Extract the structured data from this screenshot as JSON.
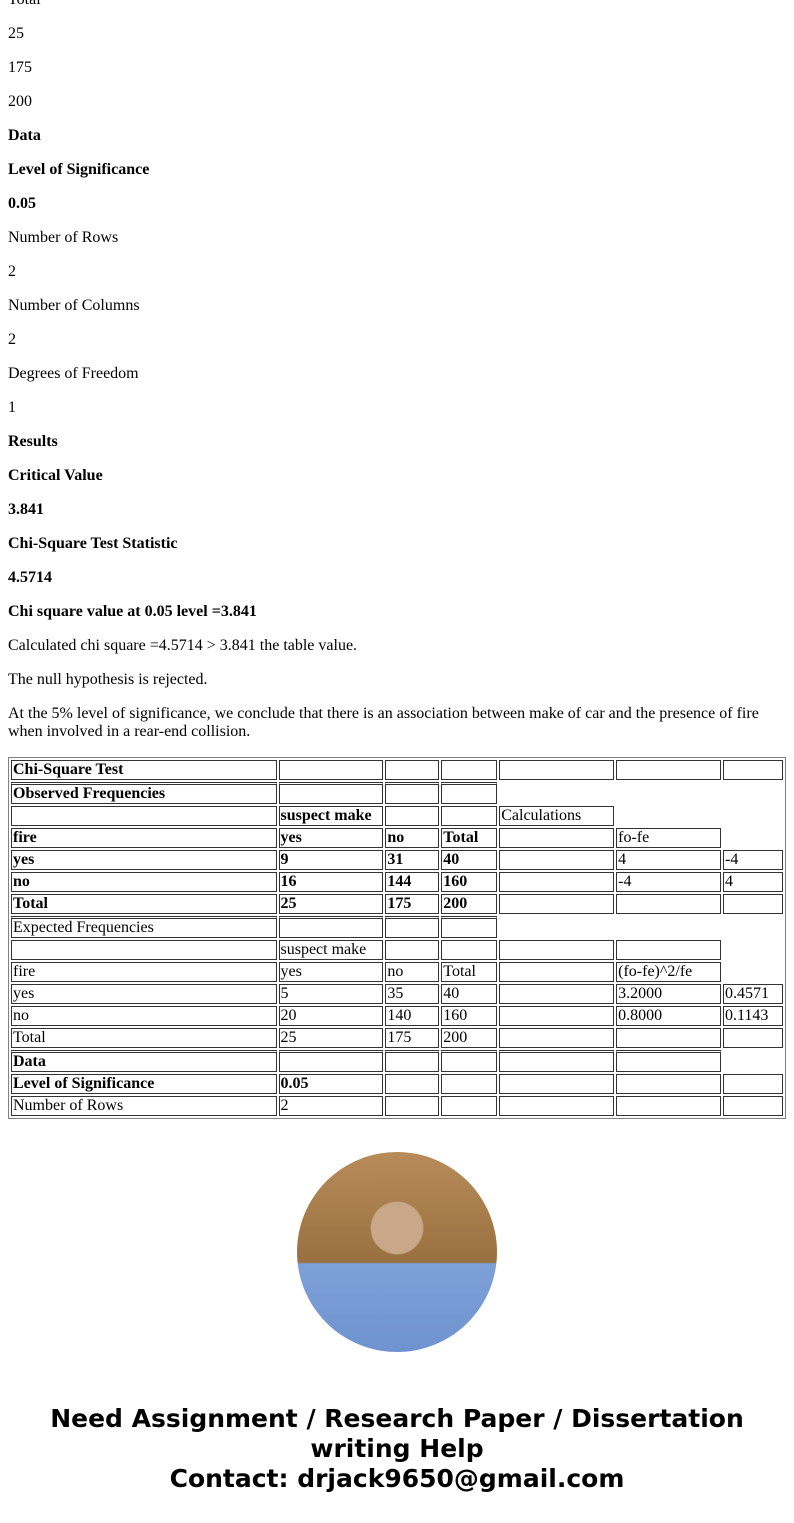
{
  "paragraphs": [
    {
      "text": "Total",
      "bold": false
    },
    {
      "text": "25",
      "bold": false
    },
    {
      "text": "175",
      "bold": false
    },
    {
      "text": "200",
      "bold": false
    },
    {
      "text": "Data",
      "bold": true
    },
    {
      "text": "Level of Significance",
      "bold": true
    },
    {
      "text": "0.05",
      "bold": true
    },
    {
      "text": "Number of Rows",
      "bold": false
    },
    {
      "text": "2",
      "bold": false
    },
    {
      "text": "Number of Columns",
      "bold": false
    },
    {
      "text": "2",
      "bold": false
    },
    {
      "text": "Degrees of Freedom",
      "bold": false
    },
    {
      "text": "1",
      "bold": false
    },
    {
      "text": "Results",
      "bold": true
    },
    {
      "text": "Critical Value",
      "bold": true
    },
    {
      "text": "3.841",
      "bold": true
    },
    {
      "text": "Chi-Square Test Statistic",
      "bold": true
    },
    {
      "text": "4.5714",
      "bold": true
    },
    {
      "text": "Chi square value at 0.05 level =3.841",
      "bold": true
    },
    {
      "text": "Calculated chi square =4.5714 > 3.841 the table value.",
      "bold": false
    },
    {
      "text": "The null hypothesis is rejected.",
      "bold": false
    },
    {
      "text": "At the 5% level of significance, we conclude that there is an association between make of car and the presence of fire when involved in a rear-end collision.",
      "bold": false
    }
  ],
  "table": {
    "rows": [
      {
        "bold": true,
        "sep": false,
        "cells": [
          "Chi-Square Test",
          "",
          "",
          "",
          "",
          "",
          ""
        ]
      },
      {
        "bold": true,
        "sep": true,
        "cells": [
          "Observed Frequencies",
          "",
          "",
          ""
        ]
      },
      {
        "bold": true,
        "sep": false,
        "cells": [
          "",
          "suspect make",
          "",
          "",
          {
            "t": "Calculations",
            "normal": true
          }
        ]
      },
      {
        "bold": true,
        "sep": false,
        "cells": [
          "fire",
          "yes",
          "no",
          "Total",
          "",
          {
            "t": "fo-fe",
            "normal": true
          }
        ]
      },
      {
        "bold": true,
        "sep": false,
        "cells": [
          "yes",
          "9",
          "31",
          "40",
          "",
          {
            "t": "4",
            "normal": true
          },
          {
            "t": "-4",
            "normal": true
          }
        ]
      },
      {
        "bold": true,
        "sep": false,
        "cells": [
          "no",
          "16",
          "144",
          "160",
          "",
          {
            "t": "-4",
            "normal": true
          },
          {
            "t": "4",
            "normal": true
          }
        ]
      },
      {
        "bold": true,
        "sep": false,
        "cells": [
          "Total",
          "25",
          "175",
          "200",
          "",
          "",
          ""
        ]
      },
      {
        "bold": false,
        "sep": true,
        "cells": [
          "Expected Frequencies",
          "",
          "",
          ""
        ]
      },
      {
        "bold": false,
        "sep": false,
        "cells": [
          "",
          "suspect make",
          "",
          "",
          "",
          ""
        ]
      },
      {
        "bold": false,
        "sep": false,
        "cells": [
          "fire",
          "yes",
          "no",
          "Total",
          "",
          "(fo-fe)^2/fe"
        ]
      },
      {
        "bold": false,
        "sep": false,
        "cells": [
          "yes",
          "5",
          "35",
          "40",
          "",
          "3.2000",
          "0.4571"
        ]
      },
      {
        "bold": false,
        "sep": false,
        "cells": [
          "no",
          "20",
          "140",
          "160",
          "",
          "0.8000",
          "0.1143"
        ]
      },
      {
        "bold": false,
        "sep": false,
        "cells": [
          "Total",
          "25",
          "175",
          "200",
          "",
          "",
          ""
        ]
      },
      {
        "bold": true,
        "sep": true,
        "cells": [
          "Data",
          "",
          "",
          "",
          "",
          ""
        ]
      },
      {
        "bold": true,
        "sep": false,
        "cells": [
          "Level of Significance",
          "0.05",
          "",
          "",
          "",
          "",
          ""
        ]
      },
      {
        "bold": false,
        "sep": false,
        "cells": [
          "Number of Rows",
          "2",
          "",
          "",
          "",
          "",
          ""
        ]
      }
    ]
  },
  "footer": {
    "line1": "Need Assignment / Research Paper / Dissertation writing Help",
    "line2": "Contact: drjack9650@gmail.com"
  }
}
